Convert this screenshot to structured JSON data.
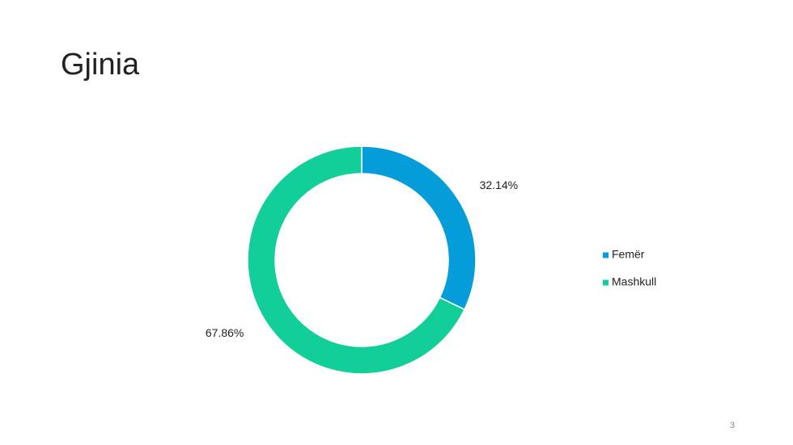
{
  "chart_data": {
    "type": "donut",
    "title": "Gjinia",
    "categories": [
      "Femër",
      "Mashkull"
    ],
    "values": [
      32.14,
      67.86
    ],
    "value_labels": [
      "32.14%",
      "67.86%"
    ],
    "colors": [
      "#049dd9",
      "#12cf9a"
    ],
    "legend": "right"
  },
  "slide_number": "3"
}
